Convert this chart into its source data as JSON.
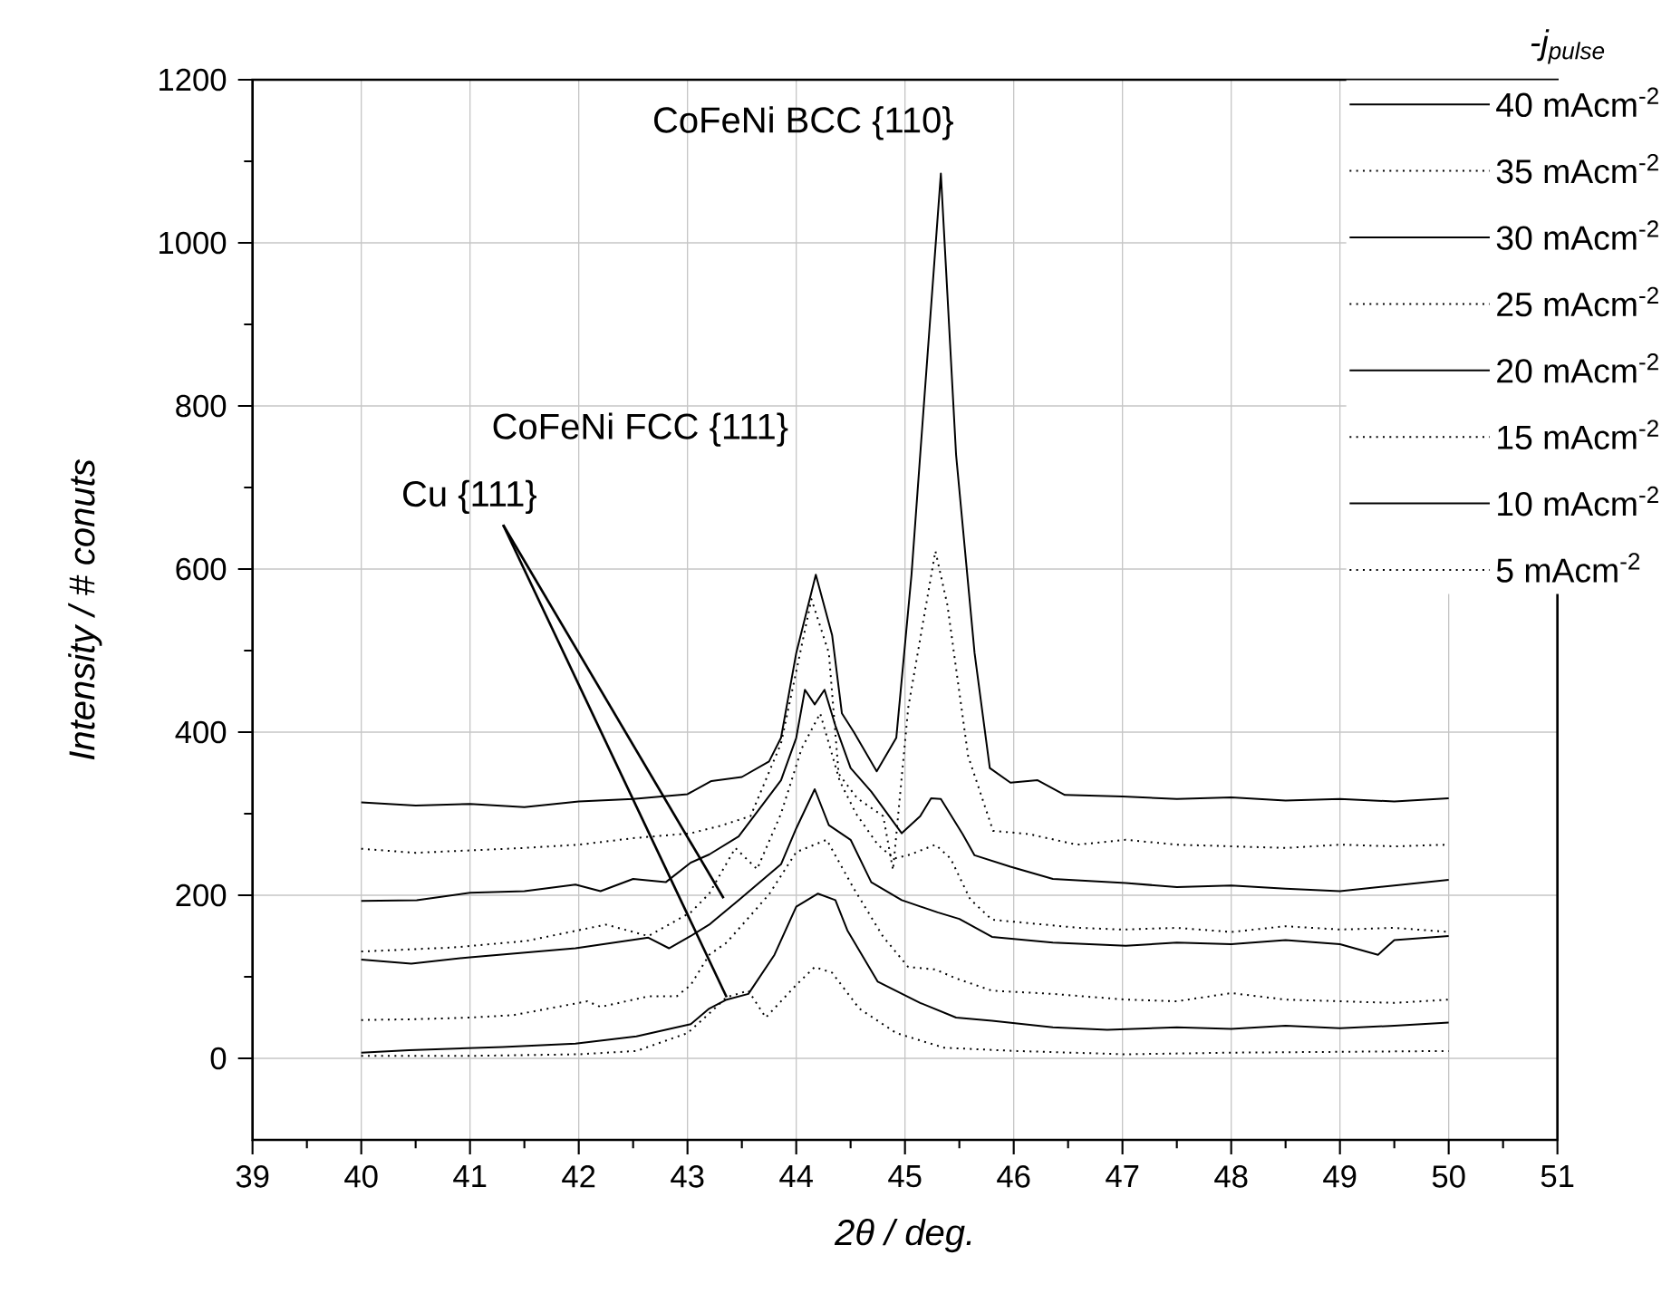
{
  "chart_data": {
    "type": "line",
    "xlabel": "2θ / deg.",
    "ylabel": "Intensity / # conuts",
    "legend_title": "-j$_{pulse}$",
    "xlim": [
      39,
      51
    ],
    "ylim": [
      -100,
      1200
    ],
    "xticks": [
      39,
      40,
      41,
      42,
      43,
      44,
      45,
      46,
      47,
      48,
      49,
      50,
      51
    ],
    "yticks": [
      0,
      200,
      400,
      600,
      800,
      1000,
      1200
    ],
    "grid": true,
    "legend": "top right",
    "annotations": [
      "CoFeNi BCC {110}",
      "CoFeNi FCC {111}",
      {
        "text": "Cu {111}",
        "x": 43.36,
        "y": 75
      }
    ],
    "series": [
      {
        "name": "40 mAcm$^{-2}$",
        "color": "#000000",
        "line_style": "solid",
        "x": [
          40,
          40.5,
          41,
          41.5,
          42,
          42.5,
          43,
          43.22,
          43.5,
          43.75,
          43.86,
          44.0,
          44.18,
          44.33,
          44.42,
          44.53,
          44.74,
          44.92,
          45.06,
          45.14,
          45.33,
          45.47,
          45.64,
          45.78,
          45.97,
          46.22,
          46.47,
          47.0,
          47.5,
          48,
          48.5,
          49,
          49.5,
          50
        ],
        "values": [
          314,
          310,
          312,
          308,
          315,
          318,
          324,
          340,
          345,
          364,
          393,
          497,
          593,
          519,
          423,
          400,
          352,
          393,
          593,
          740,
          1085,
          740,
          497,
          356,
          338,
          341,
          323,
          321,
          318,
          320,
          316,
          318,
          315,
          319
        ]
      },
      {
        "name": "35 mAcm$^{-2}$",
        "color": "#000000",
        "line_style": "dotted",
        "x": [
          40,
          40.5,
          41,
          41.5,
          42,
          42.5,
          43.03,
          43.3,
          43.58,
          43.86,
          44.14,
          44.3,
          44.39,
          44.56,
          44.8,
          44.89,
          45.03,
          45.28,
          45.39,
          45.58,
          45.81,
          46.14,
          46.58,
          47.03,
          47.5,
          48,
          48.5,
          49,
          49.5,
          50
        ],
        "values": [
          257,
          252,
          255,
          258,
          262,
          270,
          276,
          285,
          297,
          386,
          563,
          497,
          349,
          319,
          297,
          231,
          430,
          622,
          556,
          371,
          279,
          275,
          262,
          268,
          262,
          260,
          258,
          262,
          260,
          262
        ]
      },
      {
        "name": "30 mAcm$^{-2}$",
        "color": "#000000",
        "line_style": "solid",
        "x": [
          40,
          40.51,
          41,
          41.5,
          41.97,
          42.2,
          42.5,
          42.8,
          43.03,
          43.2,
          43.47,
          43.86,
          44.0,
          44.08,
          44.17,
          44.26,
          44.36,
          44.5,
          44.69,
          44.97,
          45.14,
          45.24,
          45.33,
          45.53,
          45.64,
          45.97,
          46.36,
          47.03,
          47.5,
          48,
          48.5,
          49,
          49.5,
          50
        ],
        "values": [
          193,
          194,
          203,
          205,
          213,
          205,
          220,
          216,
          240,
          250,
          272,
          341,
          393,
          452,
          434,
          452,
          408,
          356,
          327,
          276,
          297,
          319,
          318,
          275,
          249,
          235,
          220,
          215,
          210,
          212,
          208,
          205,
          212,
          219
        ]
      },
      {
        "name": "25 mAcm$^{-2}$",
        "color": "#000000",
        "line_style": "dotted",
        "x": [
          40,
          40.85,
          41.52,
          42.25,
          42.64,
          43.03,
          43.2,
          43.44,
          43.64,
          43.86,
          44.05,
          44.22,
          44.4,
          44.55,
          44.75,
          44.9,
          45.05,
          45.28,
          45.42,
          45.6,
          45.8,
          46.2,
          46.6,
          47.0,
          47.5,
          48,
          48.5,
          49,
          49.5,
          50
        ],
        "values": [
          131,
          136,
          144,
          164,
          150,
          179,
          202,
          258,
          232,
          300,
          380,
          423,
          340,
          300,
          262,
          245,
          250,
          262,
          245,
          195,
          170,
          165,
          160,
          158,
          160,
          155,
          162,
          158,
          160,
          155
        ]
      },
      {
        "name": "20 mAcm$^{-2}$",
        "color": "#000000",
        "line_style": "solid",
        "x": [
          40,
          40.46,
          41,
          41.97,
          42.64,
          42.83,
          43.03,
          43.2,
          43.47,
          43.86,
          44.0,
          44.17,
          44.3,
          44.5,
          44.69,
          44.97,
          45.3,
          45.5,
          45.8,
          46.36,
          47.03,
          47.5,
          48,
          48.5,
          49,
          49.35,
          49.5,
          50
        ],
        "values": [
          121,
          116,
          124,
          135,
          148,
          135,
          150,
          164,
          194,
          238,
          282,
          330,
          286,
          268,
          216,
          194,
          179,
          171,
          149,
          142,
          138,
          142,
          140,
          145,
          140,
          127,
          145,
          150
        ]
      },
      {
        "name": "15 mAcm$^{-2}$",
        "color": "#000000",
        "line_style": "dotted",
        "x": [
          40,
          40.5,
          41,
          41.4,
          42.08,
          42.2,
          42.64,
          42.9,
          43.03,
          43.2,
          43.36,
          43.75,
          44.0,
          44.28,
          44.53,
          44.8,
          45.03,
          45.28,
          45.47,
          45.8,
          46.36,
          47.03,
          47.5,
          48,
          48.5,
          49,
          49.5,
          50
        ],
        "values": [
          47,
          48,
          50,
          53,
          70,
          63,
          76,
          76,
          90,
          127,
          142,
          201,
          253,
          268,
          208,
          149,
          112,
          109,
          98,
          83,
          79,
          72,
          70,
          80,
          72,
          70,
          68,
          72
        ]
      },
      {
        "name": "10 mAcm$^{-2}$",
        "color": "#000000",
        "line_style": "solid",
        "x": [
          40,
          40.44,
          41.3,
          41.97,
          42.53,
          43.03,
          43.2,
          43.36,
          43.56,
          43.8,
          44.0,
          44.2,
          44.36,
          44.47,
          44.75,
          45.14,
          45.47,
          45.8,
          46.36,
          46.86,
          47.5,
          48,
          48.5,
          49,
          49.5,
          50
        ],
        "values": [
          7,
          10,
          14,
          18,
          27,
          42,
          61,
          72,
          79,
          127,
          186,
          202,
          194,
          157,
          94,
          68,
          50,
          46,
          38,
          35,
          38,
          36,
          40,
          37,
          40,
          44
        ]
      },
      {
        "name": "5 mAcm$^{-2}$",
        "color": "#000000",
        "line_style": "dotted",
        "x": [
          40,
          41,
          42,
          42.53,
          43.0,
          43.2,
          43.36,
          43.56,
          43.72,
          44.0,
          44.17,
          44.33,
          44.58,
          44.92,
          45.36,
          46.03,
          47.03,
          48,
          49,
          50
        ],
        "values": [
          3,
          3,
          5,
          9,
          31,
          55,
          75,
          83,
          50,
          90,
          112,
          105,
          61,
          31,
          13,
          9,
          5,
          7,
          8,
          9
        ]
      }
    ]
  }
}
